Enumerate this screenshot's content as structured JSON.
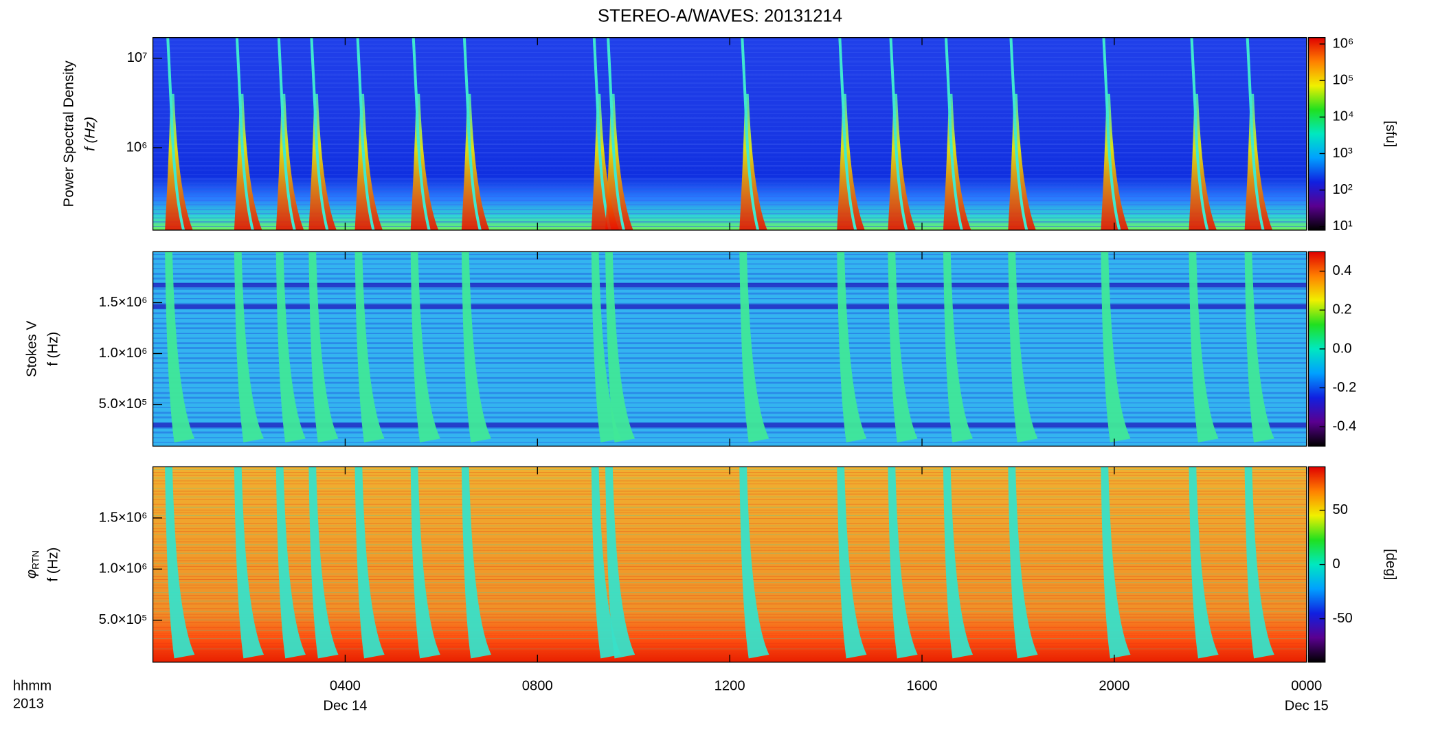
{
  "chart_data": [
    {
      "type": "spectrogram",
      "title": "STEREO-A/WAVES: 20131214",
      "ylabel": [
        "Power Spectral Density",
        "f (Hz)"
      ],
      "ylog": true,
      "ylim": [
        120000,
        17000000
      ],
      "yticks": [
        {
          "value": 1000000,
          "label": "10⁶"
        },
        {
          "value": 10000000,
          "label": "10⁷"
        }
      ],
      "xlim": [
        0,
        24
      ],
      "bursts": [
        0.29,
        1.73,
        2.6,
        3.28,
        4.24,
        5.4,
        6.46,
        9.16,
        9.45,
        12.24,
        14.27,
        15.33,
        16.48,
        17.83,
        19.76,
        21.59,
        22.75
      ],
      "colorbar": {
        "log": true,
        "lim": [
          8,
          1500000
        ],
        "label": "[sfu]",
        "ticks": [
          {
            "value": 10,
            "label": "10¹"
          },
          {
            "value": 100,
            "label": "10²"
          },
          {
            "value": 1000,
            "label": "10³"
          },
          {
            "value": 10000,
            "label": "10⁴"
          },
          {
            "value": 100000,
            "label": "10⁵"
          },
          {
            "value": 1000000,
            "label": "10⁶"
          }
        ],
        "colormap": [
          "#000000",
          "#5a0090",
          "#1020e0",
          "#00a0ff",
          "#00e8c0",
          "#20e020",
          "#f0f000",
          "#ff8000",
          "#e00000"
        ]
      }
    },
    {
      "type": "spectrogram",
      "ylabel": [
        "Stokes V",
        "f (Hz)"
      ],
      "ylog": false,
      "ylim": [
        90000,
        2000000
      ],
      "yticks": [
        {
          "value": 500000,
          "label": "5.0×10⁵"
        },
        {
          "value": 1000000,
          "label": "1.0×10⁶"
        },
        {
          "value": 1500000,
          "label": "1.5×10⁶"
        }
      ],
      "xlim": [
        0,
        24
      ],
      "bursts": [
        0.29,
        1.73,
        2.6,
        3.28,
        4.24,
        5.4,
        6.46,
        9.16,
        9.45,
        12.24,
        14.27,
        15.33,
        16.48,
        17.83,
        19.76,
        21.59,
        22.75
      ],
      "colorbar": {
        "log": false,
        "lim": [
          -0.5,
          0.5
        ],
        "ticks": [
          -0.4,
          -0.2,
          {
            "value": 0,
            "label": "0.0"
          },
          0.2,
          0.4
        ],
        "colormap": [
          "#000000",
          "#5a0090",
          "#1020e0",
          "#00a0ff",
          "#00e8c0",
          "#20e020",
          "#f0f000",
          "#ff8000",
          "#e00000"
        ]
      }
    },
    {
      "type": "spectrogram",
      "ylabel": [
        "φ",
        "RTN",
        "f (Hz)"
      ],
      "ylog": false,
      "ylim": [
        90000,
        2000000
      ],
      "yticks": [
        {
          "value": 500000,
          "label": "5.0×10⁵"
        },
        {
          "value": 1000000,
          "label": "1.0×10⁶"
        },
        {
          "value": 1500000,
          "label": "1.5×10⁶"
        }
      ],
      "xlim": [
        0,
        24
      ],
      "xlabel": [
        "hhmm",
        "2013"
      ],
      "xticks": [
        {
          "value": 4,
          "label": "0400"
        },
        {
          "value": 8,
          "label": "0800"
        },
        {
          "value": 12,
          "label": "1200"
        },
        {
          "value": 16,
          "label": "1600"
        },
        {
          "value": 20,
          "label": "2000"
        },
        {
          "value": 24,
          "label": "0000"
        }
      ],
      "xtick_dates": [
        {
          "value": 4,
          "label": "Dec 14"
        },
        {
          "value": 24,
          "label": "Dec 15"
        }
      ],
      "bursts": [
        0.29,
        1.73,
        2.6,
        3.28,
        4.24,
        5.4,
        6.46,
        9.16,
        9.45,
        12.24,
        14.27,
        15.33,
        16.48,
        17.83,
        19.76,
        21.59,
        22.75
      ],
      "colorbar": {
        "log": false,
        "lim": [
          -90,
          90
        ],
        "label": "[deg]",
        "ticks": [
          -50,
          0,
          50
        ],
        "colormap": [
          "#000000",
          "#5a0090",
          "#1020e0",
          "#00a0ff",
          "#00e8c0",
          "#20e020",
          "#f0f000",
          "#ff8000",
          "#e00000"
        ]
      }
    }
  ]
}
